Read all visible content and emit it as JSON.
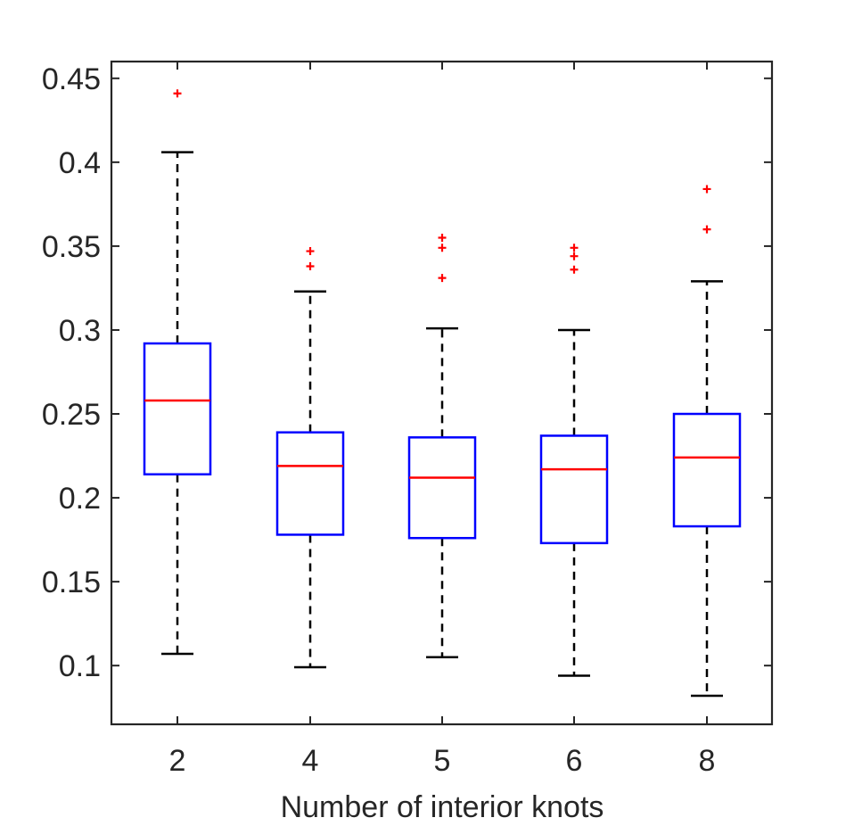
{
  "chart_data": {
    "type": "boxplot",
    "title": "",
    "xlabel": "Number of interior knots",
    "ylabel": "",
    "categories": [
      "2",
      "4",
      "5",
      "6",
      "8"
    ],
    "ylim": [
      0.065,
      0.46
    ],
    "yticks": [
      0.1,
      0.15,
      0.2,
      0.25,
      0.3,
      0.35,
      0.4,
      0.45
    ],
    "ytick_labels": [
      "0.1",
      "0.15",
      "0.2",
      "0.25",
      "0.3",
      "0.35",
      "0.4",
      "0.45"
    ],
    "grid": false,
    "boxes": [
      {
        "category": "2",
        "whisker_low": 0.107,
        "q1": 0.214,
        "median": 0.258,
        "q3": 0.292,
        "whisker_high": 0.406,
        "outliers": [
          0.441
        ]
      },
      {
        "category": "4",
        "whisker_low": 0.099,
        "q1": 0.178,
        "median": 0.219,
        "q3": 0.239,
        "whisker_high": 0.323,
        "outliers": [
          0.338,
          0.347
        ]
      },
      {
        "category": "5",
        "whisker_low": 0.105,
        "q1": 0.176,
        "median": 0.212,
        "q3": 0.236,
        "whisker_high": 0.301,
        "outliers": [
          0.331,
          0.349,
          0.355
        ]
      },
      {
        "category": "6",
        "whisker_low": 0.094,
        "q1": 0.173,
        "median": 0.217,
        "q3": 0.237,
        "whisker_high": 0.3,
        "outliers": [
          0.336,
          0.344,
          0.349
        ]
      },
      {
        "category": "8",
        "whisker_low": 0.082,
        "q1": 0.183,
        "median": 0.224,
        "q3": 0.25,
        "whisker_high": 0.329,
        "outliers": [
          0.36,
          0.384
        ]
      }
    ],
    "colors": {
      "box": "#0000ff",
      "median": "#ff0000",
      "whisker": "#000000",
      "outlier": "#ff0000",
      "axis": "#262626"
    }
  }
}
